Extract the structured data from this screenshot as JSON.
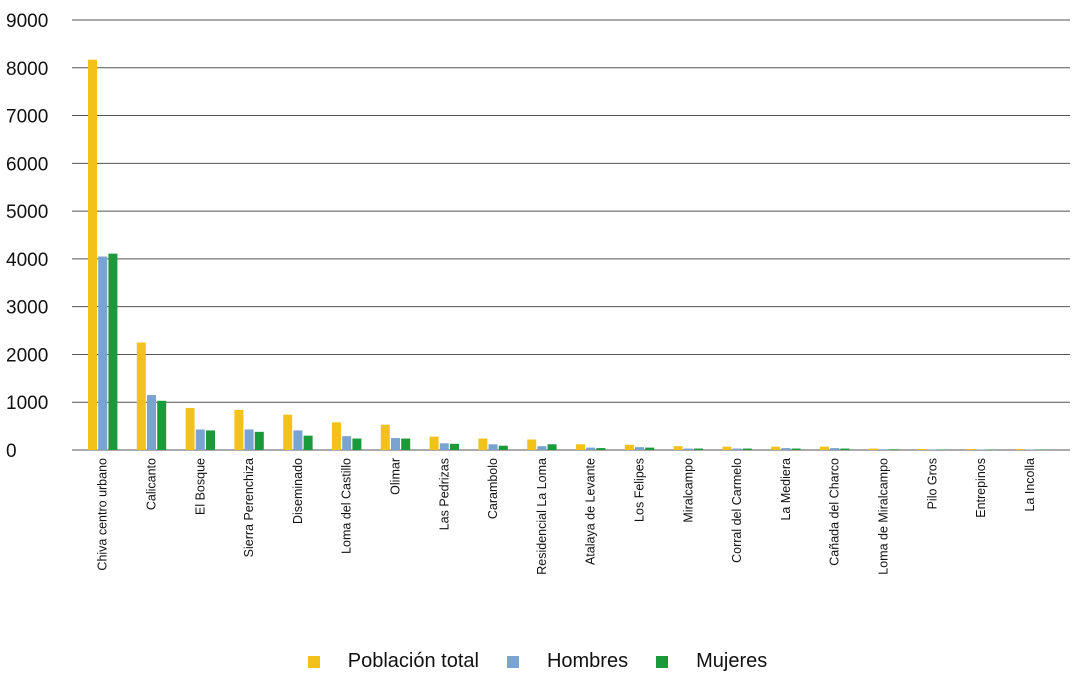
{
  "chart_data": {
    "type": "bar",
    "title": "",
    "xlabel": "",
    "ylabel": "",
    "ylim": [
      0,
      9000
    ],
    "yticks": [
      0,
      1000,
      2000,
      3000,
      4000,
      5000,
      6000,
      7000,
      8000,
      9000
    ],
    "grid": "horizontal",
    "legend_position": "bottom",
    "categories": [
      "Chiva centro urbano",
      "Calicanto",
      "El Bosque",
      "Sierra Perenchiza",
      "Diseminado",
      "Loma del Castillo",
      "Olimar",
      "Las Pedrizas",
      "Carambolo",
      "Residencial La Loma",
      "Atalaya de Levante",
      "Los Felipes",
      "Miralcampo",
      "Corral del Carmelo",
      "La Mediera",
      "Cañada del Charco",
      "Loma de Miralcampo",
      "Pilo Gros",
      "Entrepinos",
      "La Incolla"
    ],
    "series": [
      {
        "name": "Población total",
        "color": "#f2c21a",
        "values": [
          8170,
          2250,
          880,
          840,
          740,
          580,
          530,
          280,
          240,
          220,
          120,
          110,
          80,
          70,
          70,
          70,
          30,
          20,
          20,
          20
        ]
      },
      {
        "name": "Hombres",
        "color": "#7ba3d0",
        "values": [
          4050,
          1150,
          430,
          430,
          410,
          290,
          250,
          140,
          120,
          80,
          50,
          60,
          30,
          30,
          40,
          40,
          15,
          10,
          10,
          10
        ]
      },
      {
        "name": "Mujeres",
        "color": "#1a9a3a",
        "values": [
          4110,
          1030,
          410,
          380,
          300,
          240,
          240,
          130,
          90,
          120,
          40,
          50,
          30,
          30,
          30,
          30,
          15,
          10,
          10,
          10
        ]
      }
    ]
  }
}
